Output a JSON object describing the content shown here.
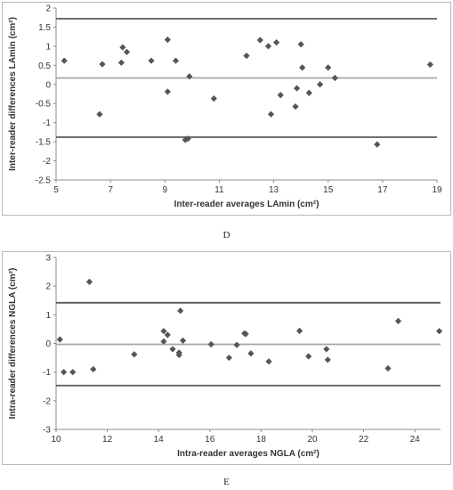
{
  "panels": [
    {
      "letter": "D"
    },
    {
      "letter": "E"
    }
  ],
  "chart_data": [
    {
      "type": "scatter",
      "title": "",
      "xlabel": "Inter-reader averages LAmin (cm²)",
      "ylabel": "Inter-reader differences LAmin (cm²)",
      "xlim": [
        5,
        19
      ],
      "ylim": [
        -2.5,
        2
      ],
      "xticks": [
        5,
        7,
        9,
        11,
        13,
        15,
        17,
        19
      ],
      "yticks": [
        2,
        1.5,
        1,
        0.5,
        0,
        -0.5,
        -1,
        -1.5,
        -2,
        -2.5
      ],
      "reference_lines": {
        "mean": 0.17,
        "upper_limit": 1.72,
        "lower_limit": -1.38
      },
      "grid": false,
      "legend": "none",
      "colors": {
        "points": "#555555",
        "limits": "#5a5a5a",
        "mean": "#a6a6a6"
      },
      "points": [
        {
          "x": 5.3,
          "y": 0.62
        },
        {
          "x": 6.6,
          "y": -0.78
        },
        {
          "x": 6.7,
          "y": 0.53
        },
        {
          "x": 7.4,
          "y": 0.57
        },
        {
          "x": 7.45,
          "y": 0.97
        },
        {
          "x": 7.6,
          "y": 0.85
        },
        {
          "x": 8.5,
          "y": 0.62
        },
        {
          "x": 9.1,
          "y": 1.17
        },
        {
          "x": 9.1,
          "y": -0.19
        },
        {
          "x": 9.4,
          "y": 0.62
        },
        {
          "x": 9.75,
          "y": -1.45
        },
        {
          "x": 9.85,
          "y": -1.42
        },
        {
          "x": 9.9,
          "y": 0.21
        },
        {
          "x": 10.8,
          "y": -0.37
        },
        {
          "x": 12.0,
          "y": 0.75
        },
        {
          "x": 12.5,
          "y": 1.16
        },
        {
          "x": 12.8,
          "y": 1.0
        },
        {
          "x": 12.9,
          "y": -0.78
        },
        {
          "x": 13.1,
          "y": 1.1
        },
        {
          "x": 13.25,
          "y": -0.28
        },
        {
          "x": 13.8,
          "y": -0.58
        },
        {
          "x": 13.85,
          "y": -0.1
        },
        {
          "x": 14.0,
          "y": 1.05
        },
        {
          "x": 14.05,
          "y": 0.44
        },
        {
          "x": 14.3,
          "y": -0.22
        },
        {
          "x": 14.7,
          "y": 0.0
        },
        {
          "x": 15.0,
          "y": 0.44
        },
        {
          "x": 15.25,
          "y": 0.17
        },
        {
          "x": 16.8,
          "y": -1.57
        },
        {
          "x": 18.75,
          "y": 0.52
        }
      ]
    },
    {
      "type": "scatter",
      "title": "",
      "xlabel": "Intra-reader averages NGLA (cm²)",
      "ylabel": "Intra-reader differences NGLA (cm²)",
      "xlim": [
        10,
        25
      ],
      "ylim": [
        -3,
        3
      ],
      "xticks": [
        10,
        12,
        14,
        16,
        18,
        20,
        22,
        24
      ],
      "yticks": [
        3,
        2,
        1,
        0,
        -1,
        -2,
        -3
      ],
      "reference_lines": {
        "mean": -0.03,
        "upper_limit": 1.42,
        "lower_limit": -1.47
      },
      "grid": false,
      "legend": "none",
      "colors": {
        "points": "#555555",
        "limits": "#5a5a5a",
        "mean": "#a6a6a6"
      },
      "points": [
        {
          "x": 10.15,
          "y": 0.14
        },
        {
          "x": 10.3,
          "y": -1.0
        },
        {
          "x": 10.65,
          "y": -1.0
        },
        {
          "x": 11.3,
          "y": 2.15
        },
        {
          "x": 11.45,
          "y": -0.9
        },
        {
          "x": 13.05,
          "y": -0.38
        },
        {
          "x": 14.2,
          "y": 0.07
        },
        {
          "x": 14.2,
          "y": 0.43
        },
        {
          "x": 14.35,
          "y": 0.3
        },
        {
          "x": 14.55,
          "y": -0.2
        },
        {
          "x": 14.8,
          "y": -0.32
        },
        {
          "x": 14.8,
          "y": -0.4
        },
        {
          "x": 14.85,
          "y": 1.14
        },
        {
          "x": 14.95,
          "y": 0.1
        },
        {
          "x": 16.05,
          "y": -0.03
        },
        {
          "x": 16.75,
          "y": -0.5
        },
        {
          "x": 17.05,
          "y": -0.05
        },
        {
          "x": 17.35,
          "y": 0.35
        },
        {
          "x": 17.4,
          "y": 0.33
        },
        {
          "x": 17.6,
          "y": -0.35
        },
        {
          "x": 18.3,
          "y": -0.63
        },
        {
          "x": 19.5,
          "y": 0.44
        },
        {
          "x": 19.85,
          "y": -0.45
        },
        {
          "x": 20.55,
          "y": -0.2
        },
        {
          "x": 20.6,
          "y": -0.57
        },
        {
          "x": 22.95,
          "y": -0.87
        },
        {
          "x": 23.35,
          "y": 0.78
        },
        {
          "x": 24.95,
          "y": 0.43
        }
      ]
    }
  ]
}
